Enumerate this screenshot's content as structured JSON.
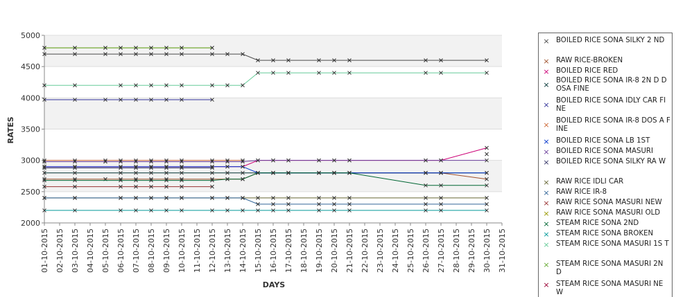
{
  "chart_data": {
    "type": "line",
    "title": "",
    "xlabel": "DAYS",
    "ylabel": "RATES",
    "ylim": [
      2000,
      5000
    ],
    "yticks": [
      2000,
      2500,
      3000,
      3500,
      4000,
      4500,
      5000
    ],
    "categories": [
      "01-10-2015",
      "02-10-2015",
      "03-10-2015",
      "04-10-2015",
      "05-10-2015",
      "06-10-2015",
      "07-10-2015",
      "08-10-2015",
      "09-10-2015",
      "10-10-2015",
      "11-10-2015",
      "12-10-2015",
      "13-10-2015",
      "14-10-2015",
      "15-10-2015",
      "16-10-2015",
      "17-10-2015",
      "18-10-2015",
      "19-10-2015",
      "20-10-2015",
      "21-10-2015",
      "22-10-2015",
      "23-10-2015",
      "24-10-2015",
      "25-10-2015",
      "26-10-2015",
      "27-10-2015",
      "28-10-2015",
      "29-10-2015",
      "30-10-2015",
      "31-10-2015"
    ],
    "legend_position": "right",
    "grid": "alternating horizontal bands",
    "series": [
      {
        "name": "BOILED RICE SONA SILKY 2 ND",
        "color": "#4b4b4b",
        "x": [
          "01-10-2015",
          "03-10-2015",
          "05-10-2015",
          "06-10-2015",
          "07-10-2015",
          "08-10-2015",
          "09-10-2015",
          "10-10-2015",
          "12-10-2015",
          "13-10-2015",
          "14-10-2015",
          "15-10-2015",
          "16-10-2015",
          "17-10-2015",
          "19-10-2015",
          "20-10-2015",
          "21-10-2015",
          "26-10-2015",
          "27-10-2015",
          "30-10-2015"
        ],
        "values": [
          4700,
          4700,
          4700,
          4700,
          4700,
          4700,
          4700,
          4700,
          4700,
          4700,
          4700,
          4600,
          4600,
          4600,
          4600,
          4600,
          4600,
          4600,
          4600,
          4600
        ]
      },
      {
        "name": "RAW RICE-BROKEN",
        "color": "#a0522d",
        "x": [
          "01-10-2015",
          "03-10-2015",
          "05-10-2015",
          "06-10-2015",
          "07-10-2015",
          "08-10-2015",
          "09-10-2015",
          "10-10-2015",
          "12-10-2015",
          "13-10-2015",
          "14-10-2015",
          "15-10-2015",
          "16-10-2015",
          "17-10-2015",
          "19-10-2015",
          "20-10-2015",
          "21-10-2015",
          "26-10-2015",
          "27-10-2015",
          "30-10-2015"
        ],
        "values": [
          2700,
          2700,
          2700,
          2700,
          2700,
          2700,
          2700,
          2700,
          2700,
          2700,
          2700,
          2800,
          2800,
          2800,
          2800,
          2800,
          2800,
          2800,
          2800,
          2700
        ]
      },
      {
        "name": "BOILED RICE RED",
        "color": "#cc0077",
        "x": [
          "01-10-2015",
          "03-10-2015",
          "06-10-2015",
          "07-10-2015",
          "08-10-2015",
          "09-10-2015",
          "10-10-2015",
          "12-10-2015",
          "13-10-2015",
          "14-10-2015",
          "15-10-2015",
          "16-10-2015",
          "17-10-2015",
          "19-10-2015",
          "20-10-2015",
          "21-10-2015",
          "26-10-2015",
          "27-10-2015",
          "30-10-2015"
        ],
        "values": [
          2900,
          2900,
          2900,
          2900,
          2900,
          2900,
          2900,
          2900,
          2900,
          2900,
          3000,
          3000,
          3000,
          3000,
          3000,
          3000,
          3000,
          3000,
          3200
        ]
      },
      {
        "name": "BOILED RICE SONA IR-8 2ND DOSA FINE",
        "color": "#003333",
        "x": [
          "01-10-2015",
          "03-10-2015",
          "06-10-2015",
          "07-10-2015",
          "08-10-2015",
          "09-10-2015",
          "10-10-2015",
          "12-10-2015",
          "13-10-2015",
          "14-10-2015",
          "15-10-2015",
          "16-10-2015",
          "17-10-2015",
          "19-10-2015",
          "20-10-2015",
          "21-10-2015",
          "26-10-2015",
          "27-10-2015",
          "30-10-2015"
        ],
        "values": [
          2800,
          2800,
          2800,
          2800,
          2800,
          2800,
          2800,
          2800,
          2800,
          2800,
          2800,
          2800,
          2800,
          2800,
          2800,
          2800,
          2800,
          2800,
          2800
        ]
      },
      {
        "name": "BOILED RICE SONA IDLY CAR FINE",
        "color": "#333399",
        "x": [
          "01-10-2015",
          "03-10-2015",
          "05-10-2015",
          "06-10-2015",
          "07-10-2015",
          "08-10-2015",
          "09-10-2015",
          "10-10-2015",
          "12-10-2015"
        ],
        "values": [
          3970,
          3970,
          3970,
          3970,
          3970,
          3970,
          3970,
          3970,
          3970
        ]
      },
      {
        "name": "BOILED RICE SONA IR-8 DOSA FINE",
        "color": "#cc6633",
        "x": [
          "01-10-2015",
          "03-10-2015",
          "05-10-2015",
          "06-10-2015",
          "07-10-2015",
          "08-10-2015",
          "09-10-2015",
          "10-10-2015",
          "12-10-2015",
          "13-10-2015",
          "14-10-2015"
        ],
        "values": [
          3000,
          3000,
          3000,
          3000,
          3000,
          3000,
          3000,
          3000,
          3000,
          3000,
          3000
        ]
      },
      {
        "name": "BOILED RICE SONA LB 1ST",
        "color": "#0033cc",
        "x": [
          "01-10-2015",
          "03-10-2015",
          "06-10-2015",
          "07-10-2015",
          "08-10-2015",
          "09-10-2015",
          "10-10-2015",
          "12-10-2015",
          "13-10-2015",
          "14-10-2015",
          "15-10-2015",
          "16-10-2015",
          "17-10-2015",
          "19-10-2015",
          "20-10-2015",
          "21-10-2015",
          "26-10-2015",
          "27-10-2015",
          "30-10-2015"
        ],
        "values": [
          2900,
          2900,
          2900,
          2900,
          2900,
          2900,
          2900,
          2900,
          2900,
          2900,
          2800,
          2800,
          2800,
          2800,
          2800,
          2800,
          2800,
          2800,
          2800
        ]
      },
      {
        "name": "BOILED RICE SONA MASURI",
        "color": "#6a3d9a",
        "x": [
          "01-10-2015",
          "03-10-2015",
          "05-10-2015",
          "06-10-2015",
          "07-10-2015",
          "08-10-2015",
          "09-10-2015",
          "10-10-2015",
          "12-10-2015",
          "13-10-2015",
          "14-10-2015",
          "15-10-2015",
          "16-10-2015",
          "17-10-2015",
          "19-10-2015",
          "20-10-2015",
          "21-10-2015",
          "26-10-2015",
          "27-10-2015",
          "30-10-2015"
        ],
        "values": [
          2980,
          2980,
          2980,
          2980,
          2980,
          2980,
          2980,
          2980,
          2980,
          2980,
          2980,
          3000,
          3000,
          3000,
          3000,
          3000,
          3000,
          3000,
          3000,
          3000
        ]
      },
      {
        "name": "BOILED RICE SONA SILKY RAW",
        "color": "#333366",
        "x": [
          "01-10-2015",
          "03-10-2015",
          "06-10-2015",
          "07-10-2015",
          "08-10-2015",
          "09-10-2015",
          "10-10-2015",
          "12-10-2015"
        ],
        "values": [
          2880,
          2880,
          2880,
          2880,
          2880,
          2880,
          2880,
          2880
        ]
      },
      {
        "name": "RAW RICE IDLI CAR",
        "color": "#666633",
        "x": [
          "01-10-2015",
          "03-10-2015",
          "06-10-2015",
          "07-10-2015",
          "08-10-2015",
          "09-10-2015",
          "10-10-2015",
          "12-10-2015",
          "13-10-2015",
          "14-10-2015",
          "15-10-2015",
          "16-10-2015",
          "17-10-2015",
          "19-10-2015",
          "20-10-2015",
          "21-10-2015",
          "26-10-2015",
          "27-10-2015",
          "30-10-2015"
        ],
        "values": [
          2400,
          2400,
          2400,
          2400,
          2400,
          2400,
          2400,
          2400,
          2400,
          2400,
          2400,
          2400,
          2400,
          2400,
          2400,
          2400,
          2400,
          2400,
          2400
        ]
      },
      {
        "name": "RAW RICE IR-8",
        "color": "#336699",
        "x": [
          "01-10-2015",
          "03-10-2015",
          "06-10-2015",
          "07-10-2015",
          "08-10-2015",
          "09-10-2015",
          "10-10-2015",
          "12-10-2015",
          "13-10-2015",
          "14-10-2015",
          "15-10-2015",
          "16-10-2015",
          "17-10-2015",
          "19-10-2015",
          "20-10-2015",
          "21-10-2015",
          "26-10-2015",
          "27-10-2015",
          "30-10-2015"
        ],
        "values": [
          2400,
          2400,
          2400,
          2400,
          2400,
          2400,
          2400,
          2400,
          2400,
          2400,
          2300,
          2300,
          2300,
          2300,
          2300,
          2300,
          2300,
          2300,
          2300
        ]
      },
      {
        "name": "RAW RICE SONA MASURI NEW",
        "color": "#993333",
        "x": [
          "01-10-2015",
          "03-10-2015",
          "06-10-2015",
          "07-10-2015",
          "08-10-2015",
          "09-10-2015",
          "10-10-2015",
          "12-10-2015"
        ],
        "values": [
          2580,
          2580,
          2580,
          2580,
          2580,
          2580,
          2580,
          2580
        ]
      },
      {
        "name": "RAW RICE SONA MASURI OLD",
        "color": "#999900",
        "x": [
          "01-10-2015",
          "03-10-2015",
          "05-10-2015",
          "06-10-2015",
          "07-10-2015",
          "08-10-2015",
          "09-10-2015",
          "10-10-2015",
          "12-10-2015"
        ],
        "values": [
          4800,
          4800,
          4800,
          4800,
          4800,
          4800,
          4800,
          4800,
          4800
        ]
      },
      {
        "name": "STEAM RICE SONA 2ND",
        "color": "#006633",
        "x": [
          "01-10-2015",
          "03-10-2015",
          "06-10-2015",
          "07-10-2015",
          "08-10-2015",
          "09-10-2015",
          "10-10-2015",
          "12-10-2015",
          "13-10-2015",
          "14-10-2015",
          "15-10-2015",
          "16-10-2015",
          "17-10-2015",
          "19-10-2015",
          "20-10-2015",
          "21-10-2015",
          "26-10-2015",
          "27-10-2015",
          "30-10-2015"
        ],
        "values": [
          2680,
          2680,
          2680,
          2680,
          2680,
          2680,
          2680,
          2680,
          2700,
          2700,
          2800,
          2800,
          2800,
          2800,
          2800,
          2800,
          2600,
          2600,
          2600
        ]
      },
      {
        "name": "STEAM RICE SONA BROKEN",
        "color": "#009999",
        "x": [
          "01-10-2015",
          "03-10-2015",
          "06-10-2015",
          "07-10-2015",
          "08-10-2015",
          "09-10-2015",
          "10-10-2015",
          "12-10-2015",
          "13-10-2015",
          "14-10-2015",
          "15-10-2015",
          "16-10-2015",
          "17-10-2015",
          "19-10-2015",
          "20-10-2015",
          "21-10-2015",
          "26-10-2015",
          "27-10-2015",
          "30-10-2015"
        ],
        "values": [
          2200,
          2200,
          2200,
          2200,
          2200,
          2200,
          2200,
          2200,
          2200,
          2200,
          2200,
          2200,
          2200,
          2200,
          2200,
          2200,
          2200,
          2200,
          2200
        ]
      },
      {
        "name": "STEAM RICE SONA MASURI 1ST",
        "color": "#66cc99",
        "x": [
          "01-10-2015",
          "03-10-2015",
          "06-10-2015",
          "07-10-2015",
          "08-10-2015",
          "09-10-2015",
          "10-10-2015",
          "12-10-2015",
          "13-10-2015",
          "14-10-2015",
          "15-10-2015",
          "16-10-2015",
          "17-10-2015",
          "19-10-2015",
          "20-10-2015",
          "21-10-2015",
          "26-10-2015",
          "27-10-2015",
          "30-10-2015"
        ],
        "values": [
          4200,
          4200,
          4200,
          4200,
          4200,
          4200,
          4200,
          4200,
          4200,
          4200,
          4400,
          4400,
          4400,
          4400,
          4400,
          4400,
          4400,
          4400,
          4400
        ]
      },
      {
        "name": "STEAM RICE SONA MASURI 2ND",
        "color": "#66aa33",
        "x": [
          "01-10-2015",
          "03-10-2015",
          "05-10-2015",
          "06-10-2015",
          "07-10-2015",
          "08-10-2015",
          "09-10-2015",
          "10-10-2015",
          "12-10-2015"
        ],
        "values": [
          4800,
          4800,
          4800,
          4800,
          4800,
          4800,
          4800,
          4800,
          4800
        ]
      },
      {
        "name": "STEAM RICE SONA MASURI NEW",
        "color": "#990033",
        "x": [
          "30-10-2015"
        ],
        "values": [
          3100
        ]
      }
    ]
  },
  "legend": {
    "items": [
      "BOILED RICE SONA SILKY 2 ND",
      " RAW RICE-BROKEN",
      "BOILED RICE RED",
      "BOILED RICE SONA  IR-8 2N D DOSA FINE",
      "BOILED RICE SONA IDLY CAR  FINE",
      "BOILED RICE SONA IR-8 DOS A FINE",
      "BOILED RICE SONA LB 1ST",
      "BOILED RICE SONA MASURI",
      "BOILED RICE SONA SILKY RA W",
      "RAW RICE IDLI CAR",
      "RAW RICE IR-8",
      "RAW RICE SONA MASURI NEW",
      "RAW RICE SONA MASURI OLD",
      "STEAM RICE SONA 2ND",
      "STEAM RICE SONA BROKEN",
      "STEAM RICE SONA MASURI 1S T",
      "STEAM RICE SONA MASURI 2N D",
      "STEAM RICE SONA MASURI NE W"
    ]
  }
}
